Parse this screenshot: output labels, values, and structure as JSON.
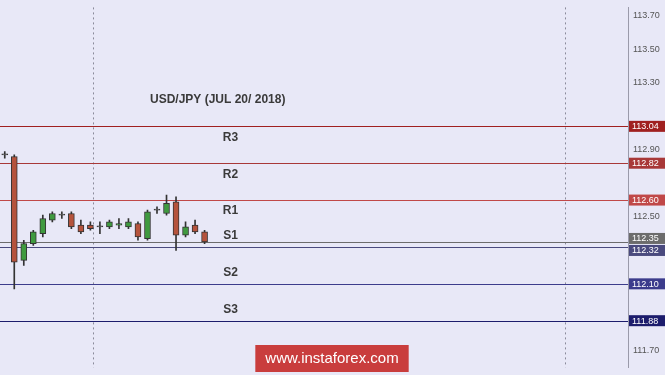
{
  "chart_data": {
    "type": "candlestick",
    "title": "USD/JPY (JUL 20/ 2018)",
    "watermark": "www.instaforex.com",
    "categories": [
      null,
      null,
      null,
      null,
      null,
      null,
      null,
      null,
      null,
      null,
      null,
      null,
      null,
      null,
      null,
      null,
      null,
      null,
      null,
      null,
      null,
      null,
      null,
      null,
      null,
      null,
      null,
      null,
      null,
      null,
      null,
      null,
      null,
      null,
      null,
      null,
      null,
      null,
      null,
      null,
      null,
      null,
      null,
      null,
      null,
      null,
      null,
      null,
      null,
      null,
      null,
      null,
      null,
      null,
      null,
      null,
      null,
      null,
      null,
      null,
      null,
      null,
      null,
      null,
      null,
      null
    ],
    "open": [
      112.87,
      112.86,
      112.24,
      112.34,
      112.4,
      112.48,
      112.51,
      112.52,
      112.45,
      112.45,
      112.44,
      112.44,
      112.45,
      112.44,
      112.46,
      112.37,
      112.54,
      112.52,
      112.59,
      112.39,
      112.45,
      112.41,
      null,
      null,
      null,
      null,
      null,
      null,
      null,
      null,
      null,
      null,
      null,
      null,
      null,
      null,
      null,
      null,
      null,
      null,
      null,
      null,
      null,
      null,
      null,
      null,
      null,
      null,
      null,
      null,
      null,
      null,
      null,
      null,
      null,
      null,
      null,
      null,
      null,
      null,
      null,
      null,
      null,
      null,
      null,
      null
    ],
    "high": [
      112.89,
      112.87,
      112.36,
      112.42,
      112.51,
      112.53,
      112.53,
      112.53,
      112.48,
      112.47,
      112.47,
      112.48,
      112.49,
      112.49,
      112.47,
      112.54,
      112.56,
      112.63,
      112.62,
      112.47,
      112.48,
      112.42,
      null,
      null,
      null,
      null,
      null,
      null,
      null,
      null,
      null,
      null,
      null,
      null,
      null,
      null,
      null,
      null,
      null,
      null,
      null,
      null,
      null,
      null,
      null,
      null,
      null,
      null,
      null,
      null,
      null,
      null,
      null,
      null,
      null,
      null,
      null,
      null,
      null,
      null,
      null,
      null,
      null,
      null,
      null,
      null
    ],
    "low": [
      112.85,
      112.07,
      112.21,
      112.33,
      112.38,
      112.47,
      112.49,
      112.43,
      112.4,
      112.42,
      112.4,
      112.43,
      112.43,
      112.43,
      112.36,
      112.36,
      112.52,
      112.51,
      112.3,
      112.38,
      112.4,
      112.34,
      null,
      null,
      null,
      null,
      null,
      null,
      null,
      null,
      null,
      null,
      null,
      null,
      null,
      null,
      null,
      null,
      null,
      null,
      null,
      null,
      null,
      null,
      null,
      null,
      null,
      null,
      null,
      null,
      null,
      null,
      null,
      null,
      null,
      null,
      null,
      null,
      null,
      null,
      null,
      null,
      null,
      null,
      null,
      null
    ],
    "close": [
      112.87,
      112.23,
      112.34,
      112.41,
      112.49,
      112.52,
      112.51,
      112.44,
      112.41,
      112.43,
      112.44,
      112.47,
      112.46,
      112.47,
      112.38,
      112.53,
      112.54,
      112.58,
      112.39,
      112.44,
      112.41,
      112.35,
      null,
      null,
      null,
      null,
      null,
      null,
      null,
      null,
      null,
      null,
      null,
      null,
      null,
      null,
      null,
      null,
      null,
      null,
      null,
      null,
      null,
      null,
      null,
      null,
      null,
      null,
      null,
      null,
      null,
      null,
      null,
      null,
      null,
      null,
      null,
      null,
      null,
      null,
      null,
      null,
      null,
      null,
      null,
      null
    ],
    "colors": [
      "#5a5a5a",
      "#b5533c",
      "#3f9a3f",
      "#3f9a3f",
      "#3f9a3f",
      "#3f9a3f",
      "#5a5a5a",
      "#b5533c",
      "#b5533c",
      "#b5533c",
      "#5a5a5a",
      "#3f9a3f",
      "#3f9a3f",
      "#3f9a3f",
      "#b5533c",
      "#3f9a3f",
      "#5a5a5a",
      "#3f9a3f",
      "#b5533c",
      "#3f9a3f",
      "#b5533c",
      "#b5533c",
      null,
      null,
      null,
      null,
      null,
      null,
      null,
      null,
      null,
      null,
      null,
      null,
      null,
      null,
      null,
      null,
      null,
      null,
      null,
      null,
      null,
      null,
      null,
      null,
      null,
      null,
      null,
      null,
      null,
      null,
      null,
      null,
      null,
      null,
      null,
      null,
      null,
      null,
      null,
      null,
      null,
      null,
      null,
      null
    ],
    "levels": [
      {
        "name": "R3",
        "value": 113.04,
        "value_label": "113.04",
        "color": "#a02020"
      },
      {
        "name": "R2",
        "value": 112.82,
        "value_label": "112.82",
        "color": "#a83838"
      },
      {
        "name": "R1",
        "value": 112.6,
        "value_label": "112.60",
        "color": "#c04848"
      },
      {
        "name": "S1",
        "value": 112.32,
        "value_label": "112.32",
        "color": "#4a4a7e"
      },
      {
        "name": "S2",
        "value": 112.1,
        "value_label": "112.10",
        "color": "#3c3c8c"
      },
      {
        "name": "S3",
        "value": 111.88,
        "value_label": "111.88",
        "color": "#1c1c6c"
      }
    ],
    "last_price": {
      "value": 112.35,
      "color": "#6c6c6c"
    },
    "ylim": [
      111.6,
      113.75
    ],
    "yticks": [
      {
        "value": 111.7,
        "label": "111.70"
      },
      {
        "value": 112.5,
        "label": "112.50"
      },
      {
        "value": 112.9,
        "label": "112.90"
      },
      {
        "value": 113.3,
        "label": "113.30"
      },
      {
        "value": 113.5,
        "label": "113.50"
      },
      {
        "value": 113.7,
        "label": "113.70"
      }
    ],
    "grid": false,
    "tick_labels": "y"
  }
}
